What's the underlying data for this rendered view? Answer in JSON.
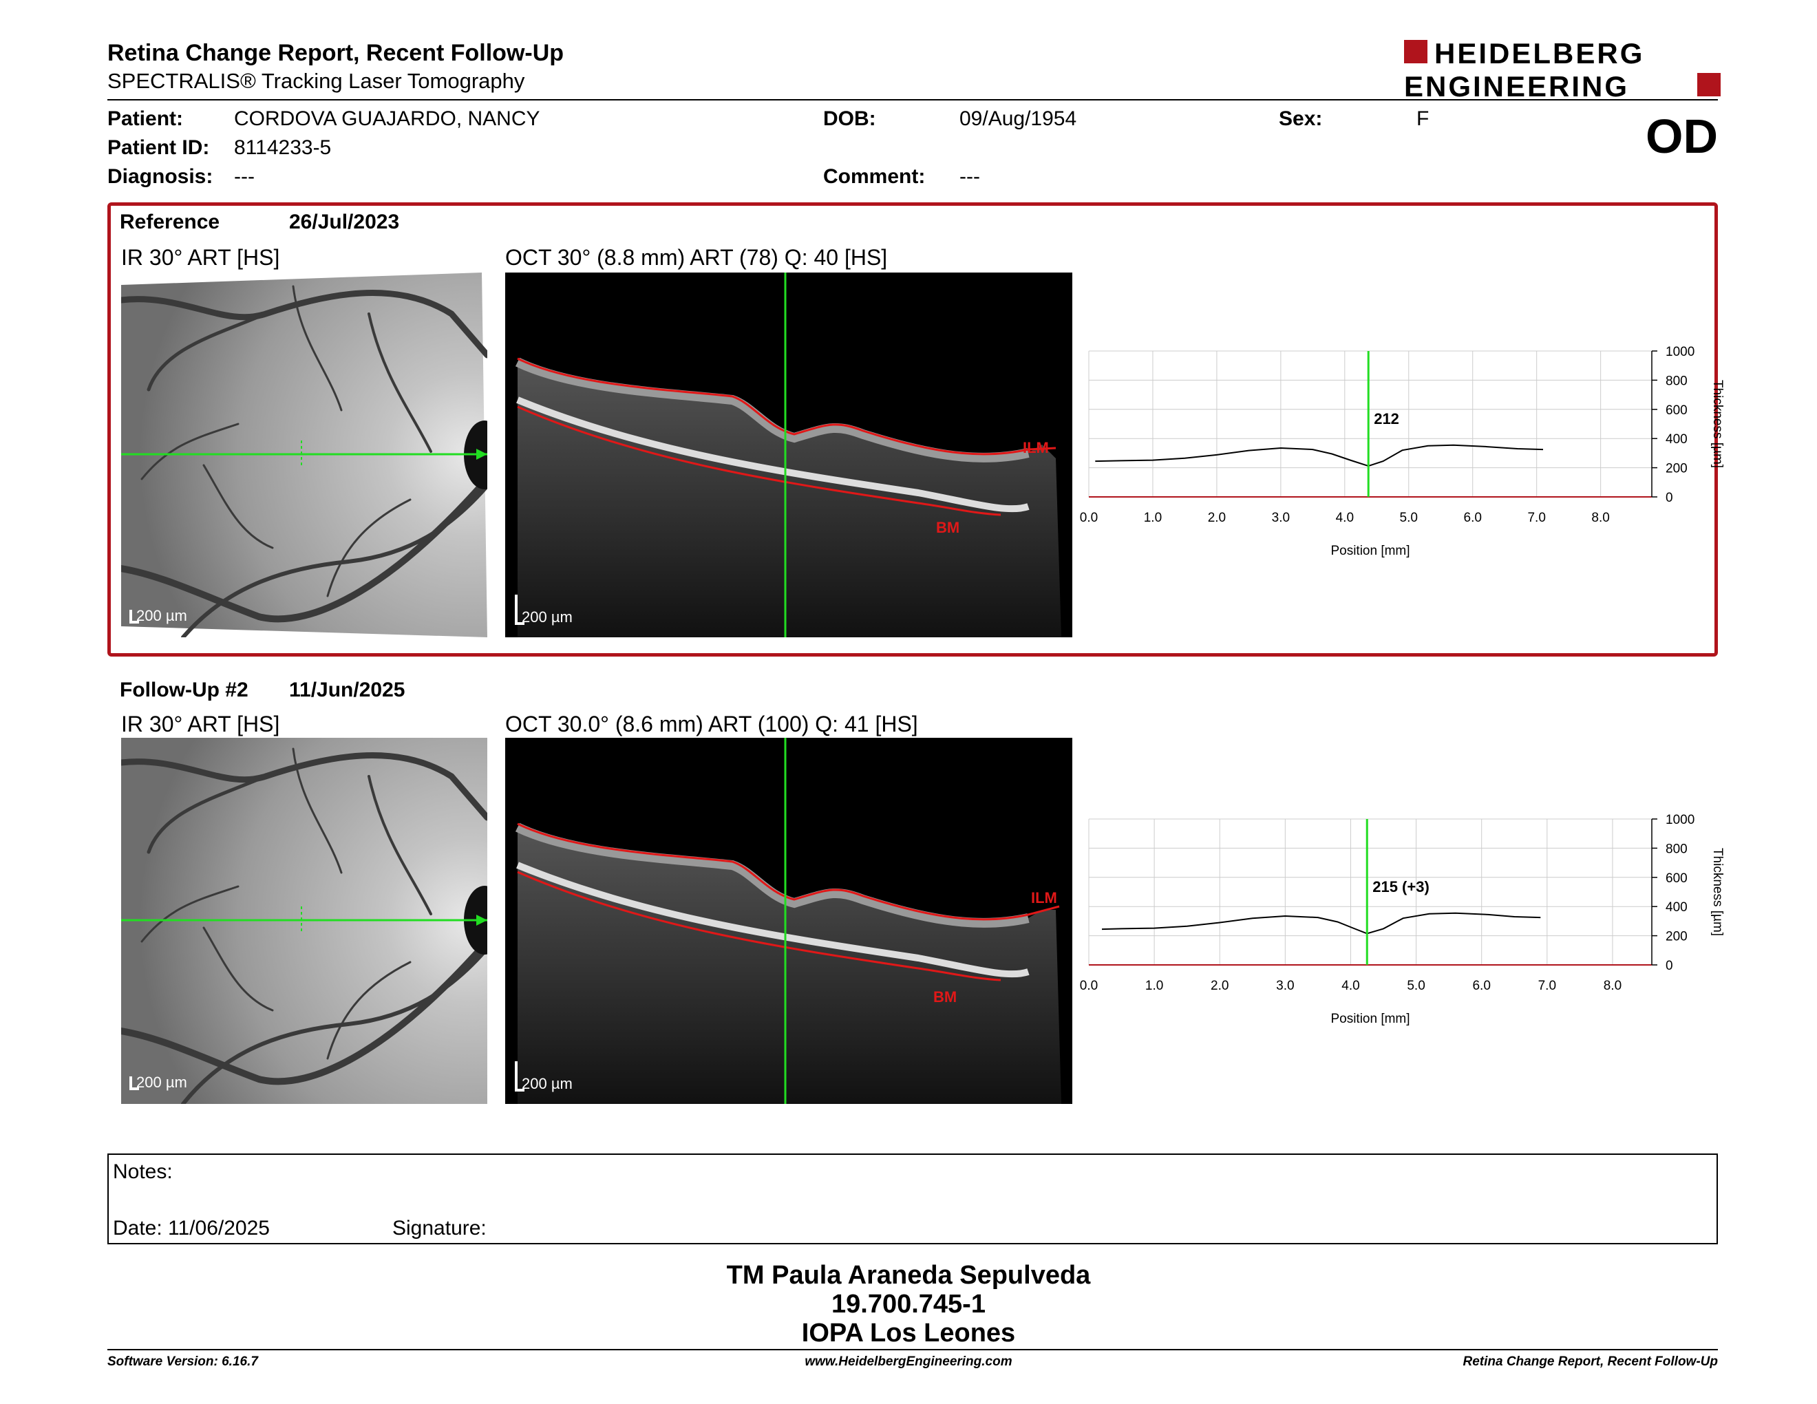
{
  "header": {
    "title": "Retina Change Report, Recent Follow-Up",
    "subtitle": "SPECTRALIS® Tracking Laser Tomography",
    "logo_line1": "HEIDELBERG",
    "logo_line2": "ENGINEERING",
    "eye": "OD"
  },
  "patient": {
    "name_label": "Patient:",
    "name": "CORDOVA GUAJARDO, NANCY",
    "id_label": "Patient ID:",
    "id": "8114233-5",
    "diagnosis_label": "Diagnosis:",
    "diagnosis": "---",
    "dob_label": "DOB:",
    "dob": "09/Aug/1954",
    "comment_label": "Comment:",
    "comment": "---",
    "sex_label": "Sex:",
    "sex": "F"
  },
  "reference": {
    "label": "Reference",
    "date": "26/Jul/2023",
    "ir_label": "IR 30° ART [HS]",
    "oct_label": "OCT 30° (8.8 mm) ART (78) Q: 40 [HS]",
    "scale": "200 µm",
    "ilm": "ILM",
    "bm": "BM"
  },
  "followup": {
    "label": "Follow-Up #2",
    "date": "11/Jun/2025",
    "ir_label": "IR 30° ART [HS]",
    "oct_label": "OCT 30.0° (8.6 mm) ART (100) Q: 41 [HS]",
    "scale": "200 µm",
    "ilm": "ILM",
    "bm": "BM"
  },
  "chart_data": [
    {
      "type": "line",
      "xlabel": "Position [mm]",
      "ylabel": "Thickness [µm]",
      "xlim": [
        0,
        8.8
      ],
      "ylim": [
        0,
        1000
      ],
      "x_ticks": [
        "0.0",
        "1.0",
        "2.0",
        "3.0",
        "4.0",
        "5.0",
        "6.0",
        "7.0",
        "8.0"
      ],
      "y_ticks": [
        "0",
        "200",
        "400",
        "600",
        "800",
        "1000"
      ],
      "marker_x": 4.37,
      "marker_label": "212",
      "x": [
        0.1,
        0.5,
        1.0,
        1.5,
        2.0,
        2.5,
        3.0,
        3.5,
        3.8,
        4.1,
        4.37,
        4.6,
        4.9,
        5.3,
        5.7,
        6.2,
        6.7,
        7.1
      ],
      "y": [
        245,
        248,
        252,
        265,
        288,
        318,
        335,
        325,
        295,
        250,
        212,
        245,
        320,
        350,
        355,
        345,
        330,
        325
      ],
      "grid": true
    },
    {
      "type": "line",
      "xlabel": "Position [mm]",
      "ylabel": "Thickness [µm]",
      "xlim": [
        0,
        8.6
      ],
      "ylim": [
        0,
        1000
      ],
      "x_ticks": [
        "0.0",
        "1.0",
        "2.0",
        "3.0",
        "4.0",
        "5.0",
        "6.0",
        "7.0",
        "8.0"
      ],
      "y_ticks": [
        "0",
        "200",
        "400",
        "600",
        "800",
        "1000"
      ],
      "marker_x": 4.25,
      "marker_label": "215 (+3)",
      "x": [
        0.2,
        0.5,
        1.0,
        1.5,
        2.0,
        2.5,
        3.0,
        3.5,
        3.8,
        4.05,
        4.25,
        4.5,
        4.8,
        5.2,
        5.6,
        6.1,
        6.5,
        6.9
      ],
      "y": [
        245,
        248,
        252,
        265,
        290,
        320,
        335,
        325,
        295,
        250,
        215,
        248,
        320,
        350,
        355,
        345,
        330,
        325
      ],
      "grid": true
    }
  ],
  "notes": {
    "notes_label": "Notes:",
    "date_label": "Date: 11/06/2025",
    "signature_label": "Signature:"
  },
  "operator": {
    "name": "TM Paula Araneda Sepulveda",
    "id": "19.700.745-1",
    "institution": "IOPA Los Leones"
  },
  "footer": {
    "software": "Software Version: 6.16.7",
    "url": "www.HeidelbergEngineering.com",
    "report": "Retina Change Report, Recent Follow-Up"
  },
  "colors": {
    "accent": "#b0141c",
    "scan_line": "#22dd22",
    "segmentation": "#e01818"
  }
}
